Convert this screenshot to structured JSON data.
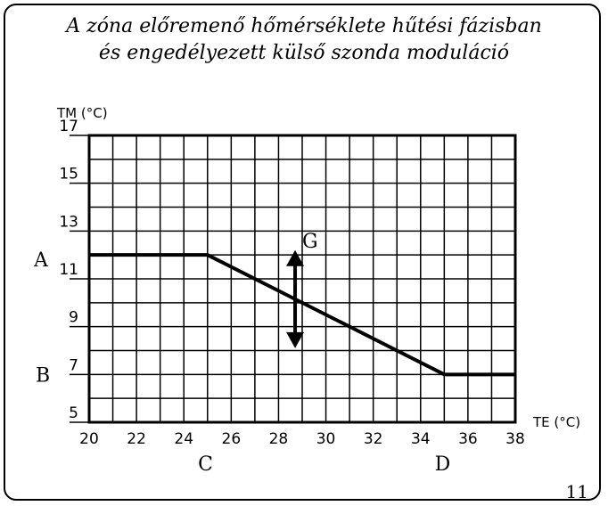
{
  "title": {
    "line1": "A zóna előremenő hőmérséklete hűtési fázisban",
    "line2": "és engedélyezett külső szonda moduláció"
  },
  "page_number": "11",
  "chart_data": {
    "type": "line",
    "xlabel": "TE (°C)",
    "ylabel": "TM (°C)",
    "xlim": [
      20,
      38
    ],
    "ylim": [
      5,
      17
    ],
    "x_ticks": [
      "20",
      "22",
      "24",
      "26",
      "28",
      "30",
      "32",
      "34",
      "36",
      "38"
    ],
    "y_ticks": [
      "5",
      "7",
      "9",
      "11",
      "13",
      "15",
      "17"
    ],
    "grid": true,
    "series": [
      {
        "x": [
          20,
          25,
          35,
          38
        ],
        "y": [
          12,
          12,
          7,
          7
        ]
      }
    ],
    "annotations": {
      "A": "A",
      "B": "B",
      "C": "C",
      "D": "D",
      "G": "G"
    },
    "arrow": {
      "x": 28.7,
      "y_from": 8.1,
      "y_to": 12.2
    }
  }
}
